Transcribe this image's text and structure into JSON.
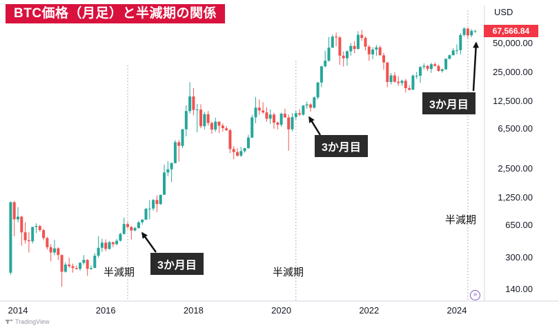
{
  "title": {
    "text": "BTC価格（月足）と半減期の関係"
  },
  "colors": {
    "banner": "#d8123d",
    "badge": "#f23645",
    "up": "#26a69a",
    "down": "#ef5350",
    "annotation_bg": "#2b2b2b",
    "dotted_line": "#9598a1"
  },
  "axis": {
    "currency_label": "USD",
    "last_price": "67,566.84",
    "ticks": [
      {
        "label": "50,000.00",
        "price": 50000
      },
      {
        "label": "25,000.00",
        "price": 25000
      },
      {
        "label": "12,500.00",
        "price": 12500
      },
      {
        "label": "6,500.00",
        "price": 6500
      },
      {
        "label": "2,500.00",
        "price": 2500
      },
      {
        "label": "1,250.00",
        "price": 1250
      },
      {
        "label": "650.00",
        "price": 650
      },
      {
        "label": "300.00",
        "price": 300
      },
      {
        "label": "140.00",
        "price": 140
      }
    ]
  },
  "x_axis": {
    "years": [
      "2014",
      "2016",
      "2018",
      "2020",
      "2022",
      "2024"
    ]
  },
  "annotations": {
    "halving_label": "半減期",
    "month3_label": "3か月目"
  },
  "footer": {
    "brand": "TradingView"
  },
  "icons": {
    "jump_to_latest": "»"
  },
  "chart_data": {
    "type": "candlestick",
    "title": "BTC価格（月足）と半減期の関係",
    "ylabel": "USD",
    "scale": "log",
    "ylim": [
      140,
      73800
    ],
    "grid": false,
    "up_color": "#26a69a",
    "down_color": "#ef5350",
    "last_close": 67566.84,
    "halvings": [
      "2016-07",
      "2020-05",
      "2024-04"
    ],
    "candles": [
      [
        "2013-11",
        210,
        1150,
        200,
        1130
      ],
      [
        "2013-12",
        1130,
        1160,
        500,
        750
      ],
      [
        "2014-01",
        750,
        1000,
        700,
        800
      ],
      [
        "2014-02",
        800,
        820,
        400,
        550
      ],
      [
        "2014-03",
        550,
        700,
        420,
        455
      ],
      [
        "2014-04",
        455,
        550,
        340,
        445
      ],
      [
        "2014-05",
        445,
        630,
        420,
        625
      ],
      [
        "2014-06",
        625,
        680,
        540,
        640
      ],
      [
        "2014-07",
        640,
        655,
        560,
        580
      ],
      [
        "2014-08",
        580,
        600,
        455,
        480
      ],
      [
        "2014-09",
        480,
        495,
        365,
        385
      ],
      [
        "2014-10",
        385,
        415,
        275,
        340
      ],
      [
        "2014-11",
        340,
        460,
        320,
        375
      ],
      [
        "2014-12",
        375,
        385,
        285,
        320
      ],
      [
        "2015-01",
        320,
        325,
        150,
        215
      ],
      [
        "2015-02",
        215,
        270,
        210,
        255
      ],
      [
        "2015-03",
        255,
        300,
        235,
        245
      ],
      [
        "2015-04",
        245,
        260,
        210,
        235
      ],
      [
        "2015-05",
        235,
        250,
        225,
        230
      ],
      [
        "2015-06",
        230,
        270,
        220,
        265
      ],
      [
        "2015-07",
        265,
        320,
        255,
        285
      ],
      [
        "2015-08",
        285,
        290,
        195,
        230
      ],
      [
        "2015-09",
        230,
        250,
        225,
        235
      ],
      [
        "2015-10",
        235,
        335,
        235,
        315
      ],
      [
        "2015-11",
        315,
        500,
        300,
        380
      ],
      [
        "2015-12",
        380,
        470,
        345,
        430
      ],
      [
        "2016-01",
        430,
        465,
        350,
        370
      ],
      [
        "2016-02",
        370,
        445,
        365,
        435
      ],
      [
        "2016-03",
        435,
        440,
        385,
        415
      ],
      [
        "2016-04",
        415,
        470,
        405,
        450
      ],
      [
        "2016-05",
        450,
        545,
        440,
        530
      ],
      [
        "2016-06",
        530,
        780,
        520,
        670
      ],
      [
        "2016-07",
        670,
        705,
        600,
        625
      ],
      [
        "2016-08",
        625,
        640,
        465,
        575
      ],
      [
        "2016-09",
        575,
        630,
        565,
        610
      ],
      [
        "2016-10",
        610,
        720,
        600,
        700
      ],
      [
        "2016-11",
        700,
        755,
        660,
        745
      ],
      [
        "2016-12",
        745,
        985,
        740,
        965
      ],
      [
        "2017-01",
        965,
        1190,
        750,
        970
      ],
      [
        "2017-02",
        970,
        1220,
        920,
        1190
      ],
      [
        "2017-03",
        1190,
        1330,
        890,
        1080
      ],
      [
        "2017-04",
        1080,
        1350,
        1060,
        1350
      ],
      [
        "2017-05",
        1350,
        2780,
        1340,
        2300
      ],
      [
        "2017-06",
        2300,
        3000,
        2100,
        2480
      ],
      [
        "2017-07",
        2480,
        2920,
        1830,
        2875
      ],
      [
        "2017-08",
        2875,
        4980,
        2840,
        4735
      ],
      [
        "2017-09",
        4735,
        4980,
        2970,
        4340
      ],
      [
        "2017-10",
        4340,
        6500,
        4110,
        6450
      ],
      [
        "2017-11",
        6450,
        11400,
        5440,
        9950
      ],
      [
        "2017-12",
        9950,
        19800,
        9380,
        14100
      ],
      [
        "2018-01",
        14100,
        17200,
        9000,
        10200
      ],
      [
        "2018-02",
        10200,
        11790,
        6000,
        10300
      ],
      [
        "2018-03",
        10300,
        11700,
        6600,
        6930
      ],
      [
        "2018-04",
        6930,
        9760,
        6430,
        9240
      ],
      [
        "2018-05",
        9240,
        9990,
        7040,
        7490
      ],
      [
        "2018-06",
        7490,
        7750,
        5780,
        6400
      ],
      [
        "2018-07",
        6400,
        8500,
        6070,
        7730
      ],
      [
        "2018-08",
        7730,
        7760,
        5880,
        7030
      ],
      [
        "2018-09",
        7030,
        7410,
        6100,
        6600
      ],
      [
        "2018-10",
        6600,
        6950,
        6200,
        6300
      ],
      [
        "2018-11",
        6300,
        6540,
        3650,
        4020
      ],
      [
        "2018-12",
        4020,
        4300,
        3150,
        3740
      ],
      [
        "2019-01",
        3740,
        4100,
        3350,
        3430
      ],
      [
        "2019-02",
        3430,
        4220,
        3330,
        3820
      ],
      [
        "2019-03",
        3820,
        4150,
        3680,
        4100
      ],
      [
        "2019-04",
        4100,
        5640,
        4050,
        5280
      ],
      [
        "2019-05",
        5280,
        9070,
        5260,
        8560
      ],
      [
        "2019-06",
        8560,
        13900,
        7450,
        10800
      ],
      [
        "2019-07",
        10800,
        13150,
        9100,
        10080
      ],
      [
        "2019-08",
        10080,
        12320,
        9360,
        9630
      ],
      [
        "2019-09",
        9630,
        10900,
        7700,
        8290
      ],
      [
        "2019-10",
        8290,
        10350,
        7300,
        9150
      ],
      [
        "2019-11",
        9150,
        9520,
        6520,
        7550
      ],
      [
        "2019-12",
        7550,
        7760,
        6430,
        7190
      ],
      [
        "2020-01",
        7190,
        9570,
        6850,
        9350
      ],
      [
        "2020-02",
        9350,
        10500,
        8520,
        8530
      ],
      [
        "2020-03",
        8530,
        9180,
        3850,
        6440
      ],
      [
        "2020-04",
        6440,
        9460,
        6140,
        8620
      ],
      [
        "2020-05",
        8620,
        10060,
        8100,
        9450
      ],
      [
        "2020-06",
        9450,
        10380,
        8830,
        9140
      ],
      [
        "2020-07",
        9140,
        11450,
        8900,
        11350
      ],
      [
        "2020-08",
        11350,
        12480,
        10500,
        11650
      ],
      [
        "2020-09",
        11650,
        12050,
        9820,
        10780
      ],
      [
        "2020-10",
        10780,
        14100,
        10520,
        13800
      ],
      [
        "2020-11",
        13800,
        19860,
        13200,
        19700
      ],
      [
        "2020-12",
        19700,
        29300,
        17570,
        29000
      ],
      [
        "2021-01",
        29000,
        41950,
        28130,
        33100
      ],
      [
        "2021-02",
        33100,
        58350,
        32320,
        45160
      ],
      [
        "2021-03",
        45160,
        61780,
        44950,
        58780
      ],
      [
        "2021-04",
        58780,
        64860,
        46930,
        57750
      ],
      [
        "2021-05",
        57750,
        59500,
        30000,
        37330
      ],
      [
        "2021-06",
        37330,
        41330,
        28800,
        35040
      ],
      [
        "2021-07",
        35040,
        42240,
        29300,
        41460
      ],
      [
        "2021-08",
        41460,
        50500,
        37330,
        47110
      ],
      [
        "2021-09",
        47110,
        52950,
        39600,
        43790
      ],
      [
        "2021-10",
        43790,
        66950,
        43280,
        61320
      ],
      [
        "2021-11",
        61320,
        69000,
        53260,
        56950
      ],
      [
        "2021-12",
        56950,
        59100,
        42330,
        46210
      ],
      [
        "2022-01",
        46210,
        47990,
        32950,
        38480
      ],
      [
        "2022-02",
        38480,
        45820,
        34320,
        43190
      ],
      [
        "2022-03",
        43190,
        48190,
        37160,
        45540
      ],
      [
        "2022-04",
        45540,
        47440,
        37580,
        37640
      ],
      [
        "2022-05",
        37640,
        40020,
        26700,
        31790
      ],
      [
        "2022-06",
        31790,
        31960,
        17590,
        19930
      ],
      [
        "2022-07",
        19930,
        24670,
        18780,
        23290
      ],
      [
        "2022-08",
        23290,
        25200,
        19520,
        20050
      ],
      [
        "2022-09",
        20050,
        22800,
        18130,
        19430
      ],
      [
        "2022-10",
        19430,
        21080,
        18190,
        20490
      ],
      [
        "2022-11",
        20490,
        21470,
        15480,
        17170
      ],
      [
        "2022-12",
        17170,
        18370,
        16260,
        16540
      ],
      [
        "2023-01",
        16540,
        23960,
        16490,
        23130
      ],
      [
        "2023-02",
        23130,
        25250,
        21400,
        23140
      ],
      [
        "2023-03",
        23140,
        29180,
        19550,
        28470
      ],
      [
        "2023-04",
        28470,
        31050,
        26950,
        29250
      ],
      [
        "2023-05",
        29250,
        29850,
        25810,
        27220
      ],
      [
        "2023-06",
        27220,
        31400,
        24800,
        30470
      ],
      [
        "2023-07",
        30470,
        31800,
        28860,
        29230
      ],
      [
        "2023-08",
        29230,
        30180,
        25350,
        25940
      ],
      [
        "2023-09",
        25940,
        27480,
        24900,
        26960
      ],
      [
        "2023-10",
        26960,
        34700,
        26540,
        34650
      ],
      [
        "2023-11",
        34650,
        38410,
        34100,
        37710
      ],
      [
        "2023-12",
        37710,
        44700,
        37620,
        42280
      ],
      [
        "2024-01",
        42280,
        48970,
        38500,
        42580
      ],
      [
        "2024-02",
        42580,
        63930,
        38520,
        61180
      ],
      [
        "2024-03",
        61180,
        73800,
        59000,
        71330
      ],
      [
        "2024-04",
        71330,
        72800,
        56500,
        60640
      ],
      [
        "2024-05",
        60640,
        70500,
        58000,
        67500
      ],
      [
        "2024-06",
        67500,
        69000,
        64500,
        67566.84
      ]
    ]
  }
}
